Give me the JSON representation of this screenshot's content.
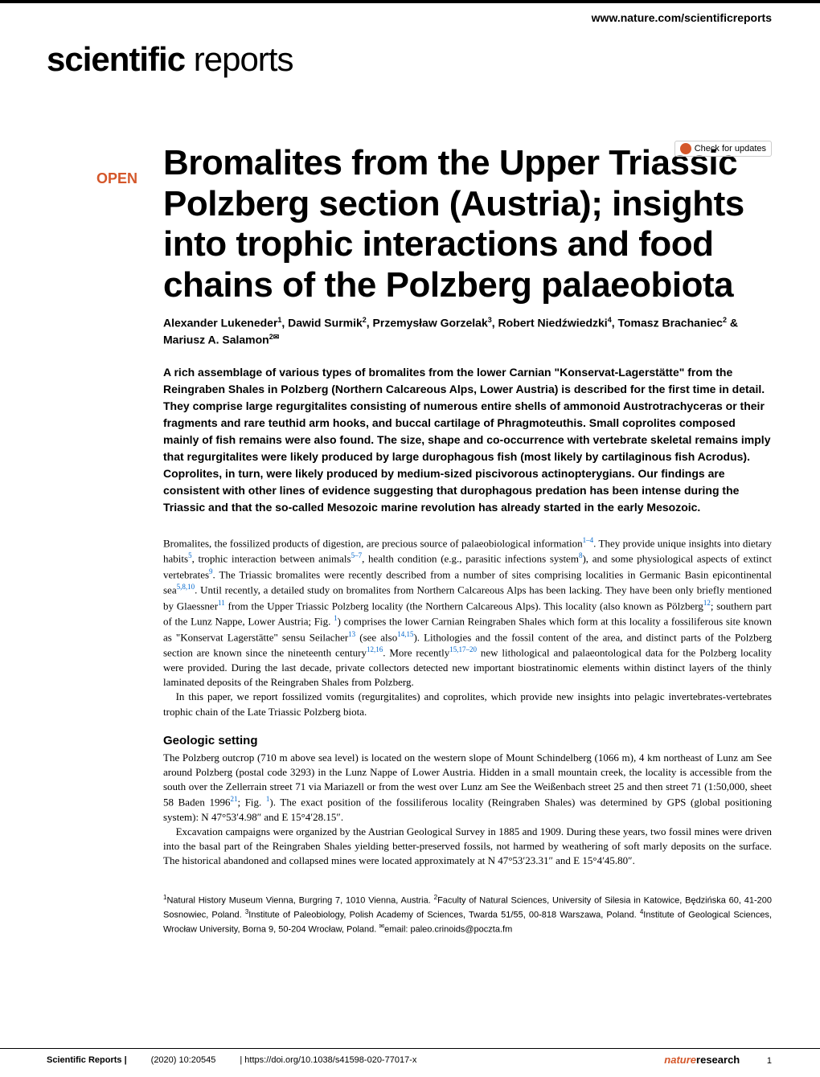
{
  "header": {
    "url": "www.nature.com/scientificreports",
    "journal_logo_bold": "scientific",
    "journal_logo_light": "reports",
    "check_updates": "Check for updates",
    "open_badge": "OPEN"
  },
  "title": "Bromalites from the Upper Triassic Polzberg section (Austria); insights into trophic interactions and food chains of the Polzberg palaeobiota",
  "authors_html": "Alexander Lukeneder<sup>1</sup>, Dawid Surmik<sup>2</sup>, Przemysław Gorzelak<sup>3</sup>, Robert Niedźwiedzki<sup>4</sup>, Tomasz Brachaniec<sup>2</sup> & Mariusz A. Salamon<sup>2✉</sup>",
  "abstract": "A rich assemblage of various types of bromalites from the lower Carnian \"Konservat-Lagerstätte\" from the Reingraben Shales in Polzberg (Northern Calcareous Alps, Lower Austria) is described for the first time in detail. They comprise large regurgitalites consisting of numerous entire shells of ammonoid Austrotrachyceras or their fragments and rare teuthid arm hooks, and buccal cartilage of Phragmoteuthis. Small coprolites composed mainly of fish remains were also found. The size, shape and co-occurrence with vertebrate skeletal remains imply that regurgitalites were likely produced by large durophagous fish (most likely by cartilaginous fish Acrodus). Coprolites, in turn, were likely produced by medium-sized piscivorous actinopterygians. Our findings are consistent with other lines of evidence suggesting that durophagous predation has been intense during the Triassic and that the so-called Mesozoic marine revolution has already started in the early Mesozoic.",
  "body": {
    "para1_html": "Bromalites, the fossilized products of digestion, are precious source of palaeobiological information<sup class=\"ref\">1–4</sup>. They provide unique insights into dietary habits<sup class=\"ref\">5</sup>, trophic interaction between animals<sup class=\"ref\">5–7</sup>, health condition (e.g., parasitic infections system<sup class=\"ref\">8</sup>), and some physiological aspects of extinct vertebrates<sup class=\"ref\">9</sup>. The Triassic bromalites were recently described from a number of sites comprising localities in Germanic Basin epicontinental sea<sup class=\"ref\">5,8,10</sup>. Until recently, a detailed study on bromalites from Northern Calcareous Alps has been lacking. They have been only briefly mentioned by Glaessner<sup class=\"ref\">11</sup> from the Upper Triassic Polzberg locality (the Northern Calcareous Alps). This locality (also known as Pölzberg<sup class=\"ref\">12</sup>; southern part of the Lunz Nappe, Lower Austria; Fig. <span class=\"ref\">1</span>) comprises the lower Carnian Reingraben Shales which form at this locality a fossiliferous site known as \"Konservat Lagerstätte\" sensu Seilacher<sup class=\"ref\">13</sup> (see also<sup class=\"ref\">14,15</sup>). Lithologies and the fossil content of the area, and distinct parts of the Polzberg section are known since the nineteenth century<sup class=\"ref\">12,16</sup>. More recently<sup class=\"ref\">15,17–20</sup> new lithological and palaeontological data for the Polzberg locality were provided. During the last decade, private collectors detected new important biostratinomic elements within distinct layers of the thinly laminated deposits of the Reingraben Shales from Polzberg.",
    "para2": "In this paper, we report fossilized vomits (regurgitalites) and coprolites, which provide new insights into pelagic invertebrates-vertebrates trophic chain of the Late Triassic Polzberg biota."
  },
  "section1": {
    "heading": "Geologic setting",
    "para1_html": "The Polzberg outcrop (710 m above sea level) is located on the western slope of Mount Schindelberg (1066 m), 4 km northeast of Lunz am See around Polzberg (postal code 3293) in the Lunz Nappe of Lower Austria. Hidden in a small mountain creek, the locality is accessible from the south over the Zellerrain street 71 via Mariazell or from the west over Lunz am See the Weißenbach street 25 and then street 71 (1:50,000, sheet 58 Baden 1996<sup class=\"ref\">21</sup>; Fig. <span class=\"ref\">1</span>). The exact position of the fossiliferous locality (Reingraben Shales) was determined by GPS (global positioning system): N 47°53′4.98″ and E 15°4′28.15″.",
    "para2": "Excavation campaigns were organized by the Austrian Geological Survey in 1885 and 1909. During these years, two fossil mines were driven into the basal part of the Reingraben Shales yielding better-preserved fossils, not harmed by weathering of soft marly deposits on the surface. The historical abandoned and collapsed mines were located approximately at N 47°53′23.31″ and E 15°4′45.80″."
  },
  "affiliations_html": "<sup>1</sup>Natural History Museum Vienna, Burgring 7, 1010 Vienna, Austria. <sup>2</sup>Faculty of Natural Sciences, University of Silesia in Katowice, Będzińska 60, 41-200 Sosnowiec, Poland. <sup>3</sup>Institute of Paleobiology, Polish Academy of Sciences, Twarda 51/55, 00-818 Warszawa, Poland. <sup>4</sup>Institute of Geological Sciences, Wrocław University, Borna 9, 50-204 Wrocław, Poland. <sup>✉</sup>email: paleo.crinoids@poczta.fm",
  "footer": {
    "journal": "Scientific Reports |",
    "citation": "(2020) 10:20545",
    "doi": "| https://doi.org/10.1038/s41598-020-77017-x",
    "publisher_italic": "nature",
    "publisher_plain": "research",
    "page": "1"
  }
}
